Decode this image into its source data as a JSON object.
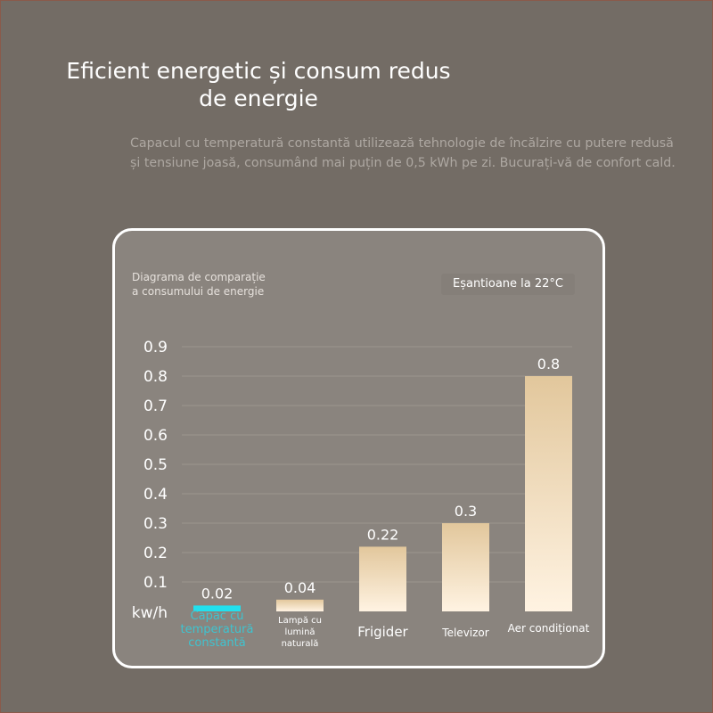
{
  "header": {
    "title_line1": "Eficient energetic și consum redus",
    "title_line2": "de energie",
    "subtitle_line1": "Capacul cu temperatură constantă utilizează tehnologie de încălzire cu putere redusă",
    "subtitle_line2": "și tensiune joasă, consumând mai puțin de 0,5 kWh pe zi. Bucurați-vă de confort cald."
  },
  "card": {
    "label_line1": "Diagrama de comparație",
    "label_line2": "a consumului de energie",
    "sample_badge": "Eșantioane la 22°C"
  },
  "colors": {
    "background": "#736c65",
    "card_background": "#8a847e",
    "highlight": "#22e0ee",
    "highlight_text": "#3fc3cf",
    "bar_top": "#e2c79c",
    "bar_bottom": "#fff3e2"
  },
  "chart_data": {
    "type": "bar",
    "unit_label": "kw/h",
    "categories": [
      [
        "Capac cu",
        "temperatură",
        "constantă"
      ],
      [
        "Lampă cu",
        "lumină",
        "naturală"
      ],
      [
        "Frigider"
      ],
      [
        "Televizor"
      ],
      [
        "Aer condiționat"
      ]
    ],
    "values": [
      0.02,
      0.04,
      0.22,
      0.3,
      0.8
    ],
    "value_labels": [
      "0.02",
      "0.04",
      "0.22",
      "0.3",
      "0.8"
    ],
    "highlight_index": 0,
    "yticks": [
      "0.1",
      "0.2",
      "0.3",
      "0.4",
      "0.5",
      "0.6",
      "0.7",
      "0.8",
      "0.9"
    ],
    "ylim": [
      0,
      0.9
    ],
    "grid": true,
    "legend": false
  }
}
